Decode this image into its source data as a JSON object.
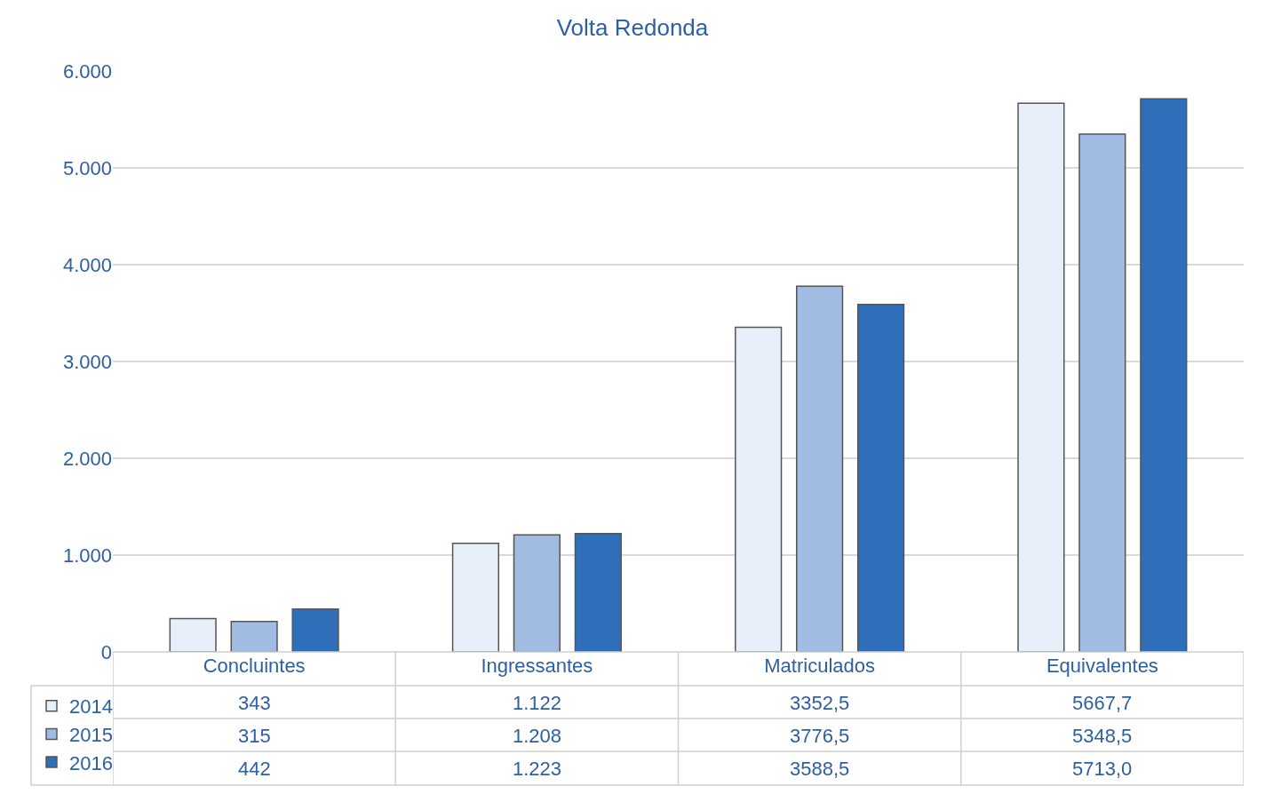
{
  "chart_data": {
    "type": "bar",
    "title": "Volta Redonda",
    "categories": [
      "Concluintes",
      "Ingressantes",
      "Matriculados",
      "Equivalentes"
    ],
    "series": [
      {
        "name": "2014",
        "color": "#e6effa",
        "values": [
          343,
          1122,
          3352.5,
          5667.7
        ],
        "value_labels": [
          "343",
          "1.122",
          "3352,5",
          "5667,7"
        ]
      },
      {
        "name": "2015",
        "color": "#a0bce3",
        "values": [
          315,
          1208,
          3776.5,
          5348.5
        ],
        "value_labels": [
          "315",
          "1.208",
          "3776,5",
          "5348,5"
        ]
      },
      {
        "name": "2016",
        "color": "#2f6fba",
        "values": [
          442,
          1223,
          3588.5,
          5713.0
        ],
        "value_labels": [
          "442",
          "1.223",
          "3588,5",
          "5713,0"
        ]
      }
    ],
    "ylim": [
      0,
      6000
    ],
    "yticks": [
      {
        "value": 0,
        "label": "0"
      },
      {
        "value": 1000,
        "label": "1.000"
      },
      {
        "value": 2000,
        "label": "2.000"
      },
      {
        "value": 3000,
        "label": "3.000"
      },
      {
        "value": 4000,
        "label": "4.000"
      },
      {
        "value": 5000,
        "label": "5.000"
      },
      {
        "value": 6000,
        "label": "6.000"
      }
    ],
    "grid": "y",
    "legend": "bottom left"
  }
}
